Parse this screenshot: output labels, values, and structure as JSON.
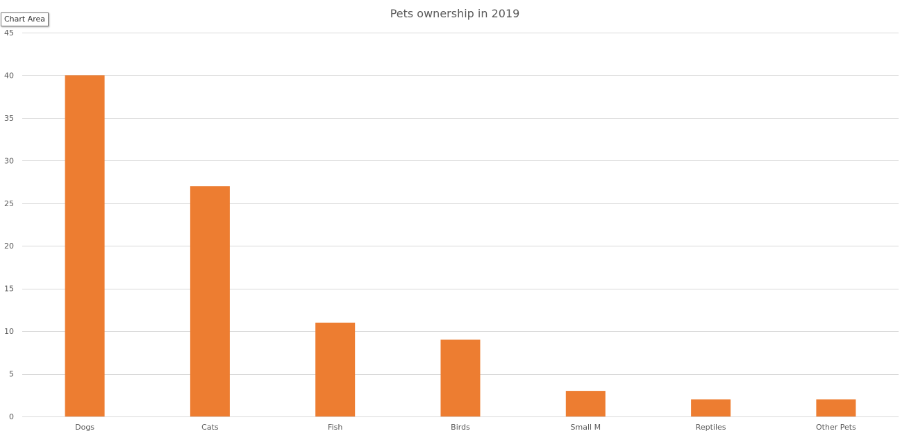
{
  "tooltip": {
    "text": "Chart Area"
  },
  "colors": {
    "bar": "#ED7D31",
    "gridline": "#D9D9D9",
    "text": "#595959"
  },
  "chart_data": {
    "type": "bar",
    "title": "Pets ownership in 2019",
    "xlabel": "",
    "ylabel": "",
    "categories": [
      "Dogs",
      "Cats",
      "Fish",
      "Birds",
      "Small M",
      "Reptiles",
      "Other Pets"
    ],
    "series": [
      {
        "values": [
          40,
          27,
          11,
          9,
          3,
          2,
          2
        ]
      }
    ],
    "ylim": [
      0,
      45
    ],
    "yticks": [
      0,
      5,
      10,
      15,
      20,
      25,
      30,
      35,
      40,
      45
    ],
    "grid": true,
    "legend": "none"
  }
}
